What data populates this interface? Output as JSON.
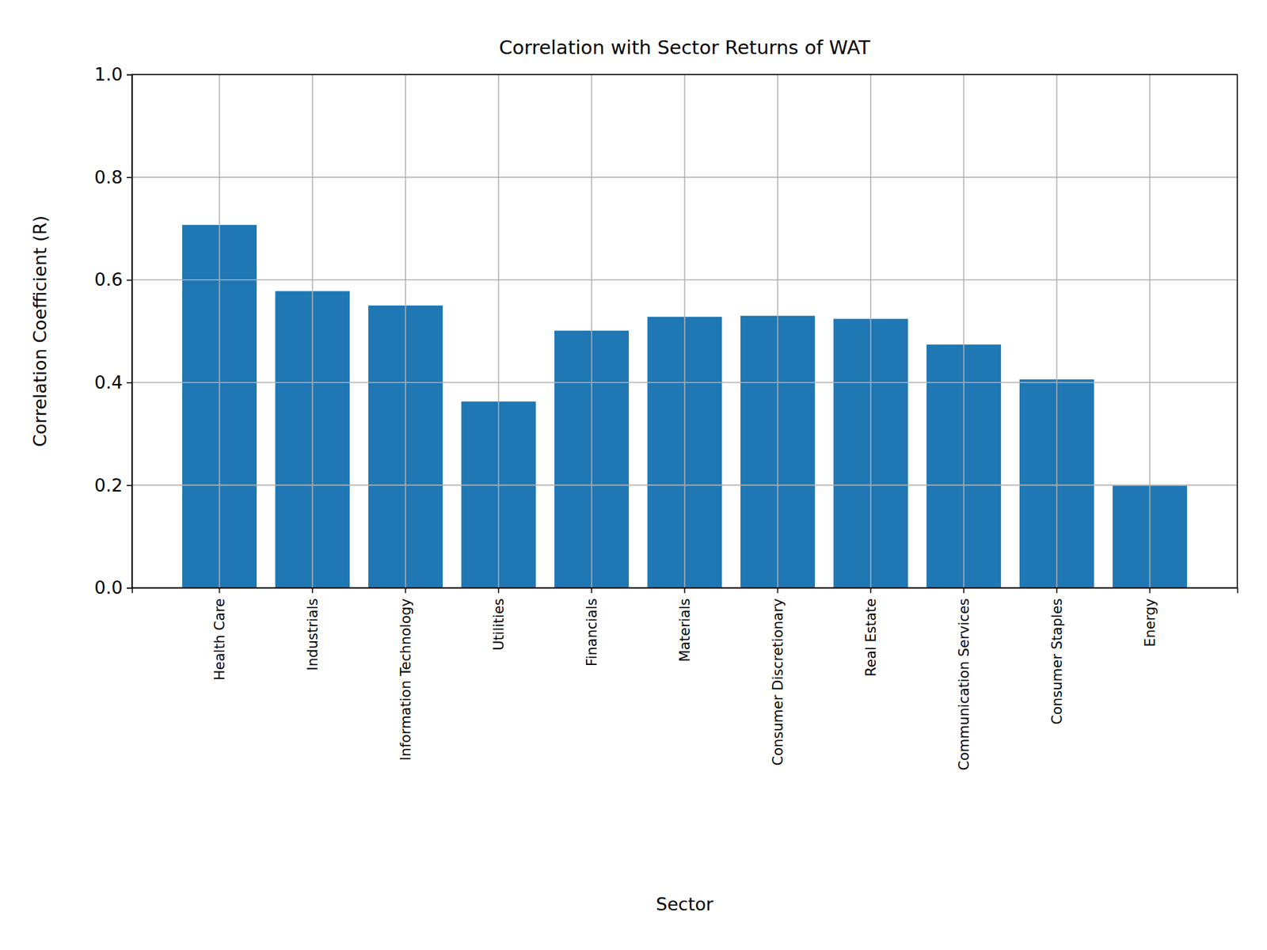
{
  "chart_data": {
    "type": "bar",
    "title": "Correlation with Sector Returns of WAT",
    "x_label": "Sector",
    "y_label": "Correlation Coefficient (R)",
    "categories": [
      "Health Care",
      "Industrials",
      "Information Technology",
      "Utilities",
      "Financials",
      "Materials",
      "Consumer Discretionary",
      "Real Estate",
      "Communication Services",
      "Consumer Staples",
      "Energy"
    ],
    "values": [
      0.707,
      0.578,
      0.55,
      0.363,
      0.501,
      0.528,
      0.53,
      0.524,
      0.474,
      0.406,
      0.199
    ],
    "color": "#1f77b4",
    "ylim": [
      0,
      1
    ],
    "yticks": [
      {
        "value": 0,
        "label": "0.0"
      },
      0.2,
      0.4,
      0.6,
      0.8,
      {
        "value": 1,
        "label": "1.0"
      }
    ],
    "grid": true
  }
}
